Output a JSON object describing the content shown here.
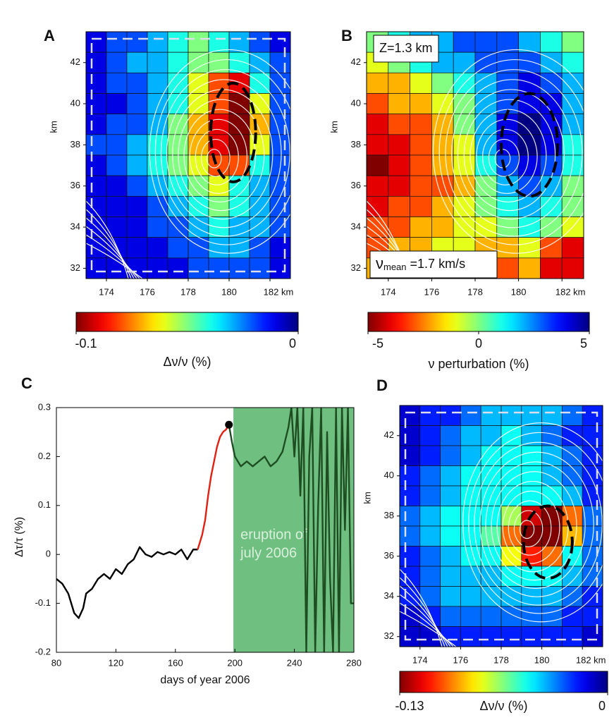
{
  "chart_data": [
    {
      "type": "heatmap",
      "panel": "A",
      "xlim": [
        173,
        183
      ],
      "ylim": [
        31.5,
        43.5
      ],
      "xbins": [
        173,
        174,
        175,
        176,
        177,
        178,
        179,
        180,
        181,
        182,
        183
      ],
      "ybins": [
        43.5,
        42.5,
        41.5,
        40.5,
        39.5,
        38.5,
        37.5,
        36.5,
        35.5,
        34.5,
        33.5,
        32.5,
        31.5
      ],
      "values": [
        [
          -0.01,
          -0.02,
          -0.02,
          -0.03,
          -0.04,
          -0.05,
          -0.04,
          -0.03,
          -0.02,
          -0.01
        ],
        [
          -0.01,
          -0.02,
          -0.03,
          -0.03,
          -0.04,
          -0.05,
          -0.05,
          -0.04,
          -0.03,
          -0.02
        ],
        [
          -0.01,
          -0.02,
          -0.02,
          -0.03,
          -0.04,
          -0.06,
          -0.08,
          -0.09,
          -0.04,
          -0.02
        ],
        [
          -0.01,
          -0.01,
          -0.02,
          -0.03,
          -0.04,
          -0.06,
          -0.08,
          -0.1,
          -0.06,
          -0.02
        ],
        [
          -0.01,
          -0.02,
          -0.02,
          -0.03,
          -0.05,
          -0.07,
          -0.09,
          -0.1,
          -0.07,
          -0.02
        ],
        [
          -0.02,
          -0.02,
          -0.03,
          -0.04,
          -0.05,
          -0.07,
          -0.09,
          -0.1,
          -0.06,
          -0.02
        ],
        [
          -0.01,
          -0.02,
          -0.03,
          -0.04,
          -0.05,
          -0.06,
          -0.08,
          -0.08,
          -0.04,
          -0.02
        ],
        [
          -0.01,
          -0.01,
          -0.02,
          -0.03,
          -0.04,
          -0.05,
          -0.06,
          -0.04,
          -0.03,
          -0.02
        ],
        [
          -0.01,
          -0.01,
          -0.01,
          -0.02,
          -0.03,
          -0.04,
          -0.05,
          -0.04,
          -0.03,
          -0.02
        ],
        [
          -0.01,
          -0.01,
          -0.01,
          -0.02,
          -0.02,
          -0.03,
          -0.04,
          -0.03,
          -0.03,
          -0.02
        ],
        [
          -0.01,
          -0.01,
          -0.01,
          -0.01,
          -0.02,
          -0.02,
          -0.03,
          -0.03,
          -0.02,
          -0.01
        ],
        [
          -0.01,
          -0.01,
          -0.01,
          -0.01,
          -0.01,
          -0.02,
          -0.02,
          -0.02,
          -0.02,
          -0.01
        ]
      ],
      "xticks": [
        174,
        176,
        178,
        180,
        {
          "value": 182,
          "label": "182 km"
        }
      ],
      "yticks": [
        32,
        34,
        36,
        38,
        40,
        42
      ],
      "ylabel": "km",
      "colormap": "jet-reversed",
      "colorbar": {
        "lim": [
          -0.1,
          0
        ],
        "ticks": [
          -0.1,
          0
        ],
        "label": "Δν/ν  (%)"
      }
    },
    {
      "type": "heatmap",
      "panel": "B",
      "xlim": [
        173,
        183
      ],
      "ylim": [
        31.5,
        43.5
      ],
      "xbins": [
        173,
        174,
        175,
        176,
        177,
        178,
        179,
        180,
        181,
        182,
        183
      ],
      "ybins": [
        43.5,
        42.5,
        41.5,
        40.5,
        39.5,
        38.5,
        37.5,
        36.5,
        35.5,
        34.5,
        33.5,
        32.5,
        31.5
      ],
      "values": [
        [
          0,
          1,
          2,
          2,
          3,
          3,
          3,
          2,
          1,
          0
        ],
        [
          -1,
          0,
          1,
          2,
          2,
          3,
          3,
          3,
          2,
          1
        ],
        [
          -2,
          -2,
          -1,
          0,
          1,
          2,
          3,
          4,
          3,
          2
        ],
        [
          -3,
          -2,
          -2,
          -1,
          0,
          2,
          3,
          4,
          4,
          2
        ],
        [
          -4,
          -3,
          -3,
          -2,
          0,
          2,
          4,
          5,
          4,
          2
        ],
        [
          -4,
          -4,
          -3,
          -2,
          -1,
          2,
          4,
          5,
          4,
          1
        ],
        [
          -5,
          -4,
          -3,
          -2,
          -1,
          1,
          3,
          4,
          3,
          1
        ],
        [
          -4,
          -4,
          -3,
          -3,
          -2,
          0,
          2,
          3,
          2,
          0
        ],
        [
          -4,
          -3,
          -3,
          -2,
          -1,
          0,
          1,
          2,
          1,
          0
        ],
        [
          -3,
          -3,
          -2,
          -2,
          -1,
          -1,
          0,
          1,
          0,
          -1
        ],
        [
          -3,
          -2,
          -2,
          -1,
          -1,
          -2,
          -2,
          -1,
          -3,
          -4
        ],
        [
          -2,
          -2,
          -1,
          -1,
          -1,
          -2,
          -3,
          -2,
          -4,
          -4
        ]
      ],
      "xticks": [
        174,
        176,
        178,
        180,
        {
          "value": 182,
          "label": "182 km"
        }
      ],
      "yticks": [
        32,
        34,
        36,
        38,
        40,
        42
      ],
      "ylabel": "km",
      "colormap": "jet-reversed",
      "annotations": [
        {
          "text": "Z=1.3 km"
        },
        {
          "symbol": "ν",
          "subscript": "mean",
          "text": " =1.7 km/s"
        }
      ],
      "colorbar": {
        "lim": [
          -5,
          5
        ],
        "ticks": [
          -5,
          0,
          5
        ],
        "label": "ν perturbation (%)"
      }
    },
    {
      "type": "line",
      "panel": "C",
      "xlim": [
        80,
        280
      ],
      "ylim": [
        -0.2,
        0.3
      ],
      "xticks": [
        80,
        120,
        160,
        200,
        240,
        280
      ],
      "yticks": [
        -0.2,
        -0.1,
        0,
        0.1,
        0.2,
        0.3
      ],
      "xlabel": "days of year 2006",
      "ylabel": "Δτ/τ  (%)",
      "shaded": {
        "x": [
          199,
          280
        ],
        "color": "#6fbf80"
      },
      "annotation": [
        "eruption of",
        "july 2006"
      ],
      "series": [
        {
          "color": "#000000",
          "x": [
            80,
            84,
            88,
            92,
            95,
            98,
            100,
            104,
            108,
            112,
            116,
            120,
            124,
            128,
            132,
            136,
            140,
            144,
            148,
            152,
            156,
            160,
            164,
            168,
            172,
            175
          ],
          "values": [
            -0.05,
            -0.06,
            -0.08,
            -0.12,
            -0.13,
            -0.11,
            -0.08,
            -0.07,
            -0.05,
            -0.04,
            -0.05,
            -0.03,
            -0.04,
            -0.02,
            -0.01,
            0.015,
            0,
            -0.005,
            0.005,
            0,
            0.005,
            0,
            0.01,
            -0.01,
            0.01,
            0.01
          ]
        },
        {
          "color": "#e02010",
          "x": [
            175,
            178,
            180,
            182,
            184,
            186,
            188,
            190,
            192,
            194,
            196
          ],
          "values": [
            0.01,
            0.04,
            0.07,
            0.12,
            0.16,
            0.19,
            0.22,
            0.24,
            0.25,
            0.255,
            0.265
          ]
        },
        {
          "color": "#1f4d22",
          "x": [
            196,
            198,
            200,
            204,
            208,
            212,
            216,
            220,
            224,
            228,
            232,
            236,
            238,
            240,
            242,
            244,
            246,
            248,
            250,
            252,
            254,
            256,
            258,
            260,
            262,
            264,
            266,
            268,
            270,
            272,
            274,
            276,
            278,
            280
          ],
          "values": [
            0.265,
            0.23,
            0.2,
            0.18,
            0.19,
            0.18,
            0.19,
            0.2,
            0.18,
            0.19,
            0.21,
            0.26,
            0.3,
            0.2,
            0.3,
            0.12,
            0.3,
            -0.2,
            0.2,
            0.3,
            -0.2,
            0.1,
            0.3,
            -0.2,
            0.25,
            -0.05,
            -0.2,
            0.3,
            -0.2,
            0.3,
            0.05,
            0.3,
            -0.1,
            -0.1
          ]
        }
      ],
      "marker": {
        "x": 196,
        "y": 0.265
      }
    },
    {
      "type": "heatmap",
      "panel": "D",
      "xlim": [
        173,
        183
      ],
      "ylim": [
        31.5,
        43.5
      ],
      "xbins": [
        173,
        174,
        175,
        176,
        177,
        178,
        179,
        180,
        181,
        182,
        183
      ],
      "ybins": [
        43.5,
        42.5,
        41.5,
        40.5,
        39.5,
        38.5,
        37.5,
        36.5,
        35.5,
        34.5,
        33.5,
        32.5,
        31.5
      ],
      "values": [
        [
          -0.01,
          -0.02,
          -0.02,
          -0.03,
          -0.04,
          -0.04,
          -0.04,
          -0.04,
          -0.03,
          -0.02
        ],
        [
          -0.01,
          -0.02,
          -0.03,
          -0.04,
          -0.04,
          -0.05,
          -0.04,
          -0.03,
          -0.02,
          -0.02
        ],
        [
          -0.01,
          -0.02,
          -0.03,
          -0.04,
          -0.05,
          -0.05,
          -0.05,
          -0.04,
          -0.03,
          -0.02
        ],
        [
          -0.02,
          -0.03,
          -0.04,
          -0.05,
          -0.05,
          -0.05,
          -0.05,
          -0.04,
          -0.03,
          -0.02
        ],
        [
          -0.02,
          -0.03,
          -0.04,
          -0.05,
          -0.05,
          -0.05,
          -0.05,
          -0.05,
          -0.04,
          -0.02
        ],
        [
          -0.03,
          -0.04,
          -0.05,
          -0.05,
          -0.05,
          -0.07,
          -0.12,
          -0.13,
          -0.1,
          -0.03
        ],
        [
          -0.03,
          -0.04,
          -0.05,
          -0.05,
          -0.06,
          -0.1,
          -0.13,
          -0.13,
          -0.09,
          -0.03
        ],
        [
          -0.02,
          -0.03,
          -0.04,
          -0.05,
          -0.05,
          -0.08,
          -0.11,
          -0.1,
          -0.05,
          -0.03
        ],
        [
          -0.02,
          -0.03,
          -0.04,
          -0.04,
          -0.04,
          -0.05,
          -0.05,
          -0.05,
          -0.04,
          -0.03
        ],
        [
          -0.02,
          -0.03,
          -0.04,
          -0.04,
          -0.04,
          -0.04,
          -0.04,
          -0.04,
          -0.03,
          -0.02
        ],
        [
          -0.01,
          -0.02,
          -0.03,
          -0.03,
          -0.03,
          -0.03,
          -0.03,
          -0.03,
          -0.02,
          -0.02
        ],
        [
          -0.01,
          -0.01,
          -0.02,
          -0.02,
          -0.02,
          -0.02,
          -0.02,
          -0.02,
          -0.02,
          -0.01
        ]
      ],
      "xticks": [
        174,
        176,
        178,
        180,
        {
          "value": 182,
          "label": "182 km"
        }
      ],
      "yticks": [
        32,
        34,
        36,
        38,
        40,
        42
      ],
      "ylabel": "km",
      "colormap": "jet-reversed",
      "colorbar": {
        "lim": [
          -0.13,
          0
        ],
        "ticks": [
          -0.13,
          0
        ],
        "label": "Δν/ν (%)"
      }
    }
  ]
}
